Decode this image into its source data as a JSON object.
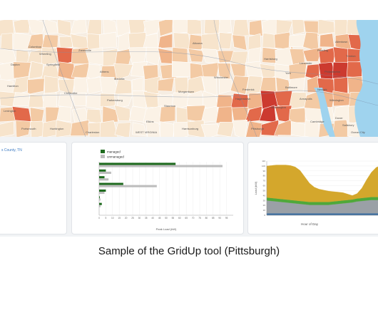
{
  "caption": "Sample of the GridUp tool (Pittsburgh)",
  "left_panel": {
    "county": "s County, TN"
  },
  "map": {
    "labels": [
      "Wheeling",
      "Pittsburgh",
      "Philadelphia",
      "Harrisburg",
      "Morgantown",
      "Hagerstown",
      "Baltimore",
      "Washington",
      "Lancaster",
      "Reading",
      "Allentown",
      "Trenton",
      "Dover",
      "Altoona",
      "York",
      "Frederick",
      "Chillicothe",
      "Parkersburg",
      "Charleston",
      "Marietta",
      "Springfield",
      "Columbus",
      "Zanesville",
      "Athens",
      "Portsmouth",
      "Dayton",
      "Hamilton",
      "Lexington",
      "Huntington",
      "Elkins",
      "Harrisonburg",
      "Staunton",
      "Winchester",
      "Ocean City",
      "WEST VIRGINIA",
      "Wilmington",
      "Salisbury",
      "Annapolis",
      "Newark",
      "Cambridge"
    ],
    "colors": {
      "low": "#f7e4cc",
      "mid": "#f0b48a",
      "high": "#e2694a",
      "peak": "#cc3a2f",
      "water": "#9fd3ee",
      "road": "#7b8ea8"
    }
  },
  "bar_panel": {
    "legend": [
      {
        "label": "managed",
        "color": "#1f6b1f"
      },
      {
        "label": "unmanaged",
        "color": "#bdbdbd"
      }
    ],
    "x_title": "Peak Load (kW)"
  },
  "area_panel": {
    "y_title": "Load (kW)",
    "x_title": "Hour of Day"
  },
  "chart_data": [
    {
      "type": "bar",
      "orientation": "horizontal",
      "categories": [
        "",
        "",
        "",
        "",
        "",
        "",
        "",
        ""
      ],
      "series": [
        {
          "name": "managed",
          "values": [
            57,
            5,
            4,
            18,
            5,
            0.5,
            2,
            0
          ]
        },
        {
          "name": "unmanaged",
          "values": [
            92,
            9,
            7,
            43,
            4,
            1,
            1,
            0
          ]
        }
      ],
      "xlim": [
        0,
        100
      ],
      "x_ticks": [
        "0",
        "5",
        "10",
        "15",
        "20",
        "25",
        "30",
        "35",
        "40",
        "45",
        "50",
        "55",
        "60",
        "65",
        "70",
        "75",
        "80",
        "85",
        "90",
        "95"
      ],
      "xlabel": "Peak Load (kW)",
      "ylabel": "",
      "grid": true,
      "legend": "top-left"
    },
    {
      "type": "area",
      "x": [
        0,
        1,
        2,
        3,
        4,
        5,
        6,
        7,
        8,
        9,
        10,
        11,
        12,
        13,
        14,
        15,
        16,
        17,
        18,
        19,
        20,
        21,
        22,
        23,
        24
      ],
      "series": [
        {
          "name": "",
          "color": "#3f6fa0",
          "values": [
            4,
            4,
            4,
            4,
            4,
            4,
            4,
            4,
            4,
            4,
            4,
            4,
            4,
            4,
            4,
            4,
            4,
            4,
            4,
            4,
            4,
            4,
            4,
            4,
            4
          ]
        },
        {
          "name": "",
          "color": "#9aa0a6",
          "values": [
            26,
            25,
            24,
            23,
            22,
            21,
            20,
            19,
            18,
            17,
            17,
            17,
            17,
            17,
            18,
            19,
            20,
            21,
            22,
            24,
            25,
            26,
            27,
            27,
            27
          ]
        },
        {
          "name": "",
          "color": "#4fa83a",
          "values": [
            6,
            6,
            6,
            6,
            6,
            6,
            6,
            6,
            6,
            6,
            6,
            6,
            6,
            6,
            6,
            6,
            6,
            6,
            6,
            6,
            6,
            6,
            6,
            6,
            6
          ]
        },
        {
          "name": "",
          "color": "#d4a72c",
          "values": [
            64,
            66,
            68,
            69,
            70,
            70,
            68,
            62,
            50,
            38,
            30,
            26,
            24,
            22,
            20,
            18,
            16,
            12,
            8,
            10,
            20,
            36,
            50,
            60,
            64
          ]
        }
      ],
      "ylim": [
        0,
        110
      ],
      "y_ticks": [
        "0",
        "10",
        "20",
        "30",
        "40",
        "50",
        "60",
        "70",
        "80",
        "90",
        "100",
        "110"
      ],
      "xlabel": "Hour of Day",
      "ylabel": "Load (kW)",
      "stacked": true
    }
  ]
}
